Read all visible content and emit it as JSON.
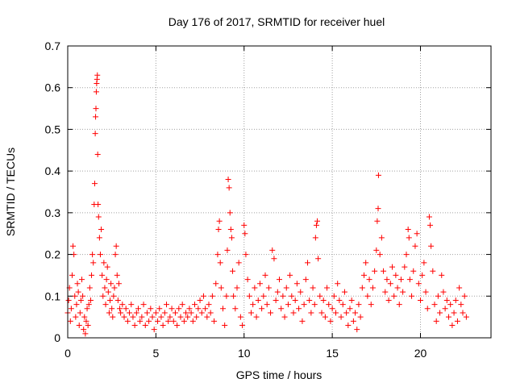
{
  "chart_data": {
    "type": "scatter",
    "title": "Day 176 of 2017, SRMTID for receiver huel",
    "xlabel": "GPS time / hours",
    "ylabel": "SRMTID / TECUs",
    "xlim": [
      0,
      24
    ],
    "ylim": [
      0,
      0.7
    ],
    "x_ticks": [
      0,
      5,
      10,
      15,
      20
    ],
    "x_tick_labels": [
      "0",
      "5",
      "10",
      "15",
      "20"
    ],
    "y_ticks": [
      0,
      0.1,
      0.2,
      0.3,
      0.4,
      0.5,
      0.6,
      0.7
    ],
    "y_tick_labels": [
      "0",
      "0.1",
      "0.2",
      "0.3",
      "0.4",
      "0.5",
      "0.6",
      "0.7"
    ],
    "grid": true,
    "marker": "+",
    "color": "#ff0000",
    "series": [
      {
        "name": "SRMTID",
        "points": [
          [
            0.0,
            0.06
          ],
          [
            0.05,
            0.09
          ],
          [
            0.1,
            0.12
          ],
          [
            0.15,
            0.04
          ],
          [
            0.2,
            0.07
          ],
          [
            0.25,
            0.15
          ],
          [
            0.3,
            0.22
          ],
          [
            0.35,
            0.2
          ],
          [
            0.4,
            0.1
          ],
          [
            0.45,
            0.05
          ],
          [
            0.5,
            0.08
          ],
          [
            0.55,
            0.13
          ],
          [
            0.6,
            0.11
          ],
          [
            0.65,
            0.03
          ],
          [
            0.7,
            0.06
          ],
          [
            0.75,
            0.09
          ],
          [
            0.8,
            0.14
          ],
          [
            0.85,
            0.1
          ],
          [
            0.9,
            0.02
          ],
          [
            0.95,
            0.05
          ],
          [
            1.0,
            0.01
          ],
          [
            1.05,
            0.04
          ],
          [
            1.1,
            0.07
          ],
          [
            1.15,
            0.03
          ],
          [
            1.2,
            0.08
          ],
          [
            1.25,
            0.12
          ],
          [
            1.3,
            0.09
          ],
          [
            1.35,
            0.15
          ],
          [
            1.4,
            0.2
          ],
          [
            1.45,
            0.18
          ],
          [
            1.5,
            0.32
          ],
          [
            1.53,
            0.37
          ],
          [
            1.56,
            0.49
          ],
          [
            1.58,
            0.53
          ],
          [
            1.6,
            0.55
          ],
          [
            1.62,
            0.59
          ],
          [
            1.64,
            0.61
          ],
          [
            1.66,
            0.62
          ],
          [
            1.68,
            0.63
          ],
          [
            1.7,
            0.44
          ],
          [
            1.72,
            0.32
          ],
          [
            1.75,
            0.29
          ],
          [
            1.8,
            0.24
          ],
          [
            1.85,
            0.2
          ],
          [
            1.9,
            0.26
          ],
          [
            1.95,
            0.15
          ],
          [
            2.0,
            0.1
          ],
          [
            2.05,
            0.18
          ],
          [
            2.1,
            0.12
          ],
          [
            2.15,
            0.08
          ],
          [
            2.2,
            0.14
          ],
          [
            2.25,
            0.17
          ],
          [
            2.3,
            0.11
          ],
          [
            2.35,
            0.06
          ],
          [
            2.4,
            0.09
          ],
          [
            2.45,
            0.13
          ],
          [
            2.5,
            0.07
          ],
          [
            2.55,
            0.05
          ],
          [
            2.6,
            0.1
          ],
          [
            2.65,
            0.12
          ],
          [
            2.7,
            0.2
          ],
          [
            2.75,
            0.22
          ],
          [
            2.8,
            0.15
          ],
          [
            2.85,
            0.09
          ],
          [
            2.9,
            0.13
          ],
          [
            2.95,
            0.07
          ],
          [
            3.0,
            0.06
          ],
          [
            3.1,
            0.08
          ],
          [
            3.2,
            0.05
          ],
          [
            3.3,
            0.07
          ],
          [
            3.4,
            0.04
          ],
          [
            3.5,
            0.06
          ],
          [
            3.6,
            0.08
          ],
          [
            3.7,
            0.05
          ],
          [
            3.8,
            0.03
          ],
          [
            3.9,
            0.06
          ],
          [
            4.0,
            0.07
          ],
          [
            4.1,
            0.04
          ],
          [
            4.2,
            0.05
          ],
          [
            4.3,
            0.08
          ],
          [
            4.4,
            0.03
          ],
          [
            4.5,
            0.06
          ],
          [
            4.6,
            0.04
          ],
          [
            4.7,
            0.07
          ],
          [
            4.8,
            0.05
          ],
          [
            4.9,
            0.02
          ],
          [
            5.0,
            0.06
          ],
          [
            5.1,
            0.04
          ],
          [
            5.2,
            0.07
          ],
          [
            5.3,
            0.05
          ],
          [
            5.4,
            0.03
          ],
          [
            5.5,
            0.06
          ],
          [
            5.6,
            0.08
          ],
          [
            5.7,
            0.04
          ],
          [
            5.8,
            0.05
          ],
          [
            5.9,
            0.07
          ],
          [
            6.0,
            0.04
          ],
          [
            6.1,
            0.06
          ],
          [
            6.2,
            0.03
          ],
          [
            6.3,
            0.07
          ],
          [
            6.4,
            0.05
          ],
          [
            6.5,
            0.08
          ],
          [
            6.6,
            0.04
          ],
          [
            6.7,
            0.06
          ],
          [
            6.8,
            0.05
          ],
          [
            6.9,
            0.07
          ],
          [
            7.0,
            0.06
          ],
          [
            7.1,
            0.04
          ],
          [
            7.2,
            0.08
          ],
          [
            7.3,
            0.05
          ],
          [
            7.4,
            0.07
          ],
          [
            7.5,
            0.09
          ],
          [
            7.6,
            0.06
          ],
          [
            7.7,
            0.1
          ],
          [
            7.8,
            0.07
          ],
          [
            7.9,
            0.05
          ],
          [
            8.0,
            0.08
          ],
          [
            8.1,
            0.06
          ],
          [
            8.2,
            0.1
          ],
          [
            8.3,
            0.04
          ],
          [
            8.4,
            0.13
          ],
          [
            8.5,
            0.2
          ],
          [
            8.55,
            0.26
          ],
          [
            8.6,
            0.28
          ],
          [
            8.65,
            0.18
          ],
          [
            8.7,
            0.12
          ],
          [
            8.8,
            0.07
          ],
          [
            8.9,
            0.03
          ],
          [
            9.0,
            0.1
          ],
          [
            9.05,
            0.21
          ],
          [
            9.1,
            0.38
          ],
          [
            9.15,
            0.36
          ],
          [
            9.2,
            0.3
          ],
          [
            9.25,
            0.26
          ],
          [
            9.3,
            0.24
          ],
          [
            9.35,
            0.16
          ],
          [
            9.4,
            0.1
          ],
          [
            9.5,
            0.07
          ],
          [
            9.6,
            0.12
          ],
          [
            9.7,
            0.18
          ],
          [
            9.8,
            0.05
          ],
          [
            9.9,
            0.03
          ],
          [
            10.0,
            0.27
          ],
          [
            10.05,
            0.25
          ],
          [
            10.1,
            0.2
          ],
          [
            10.2,
            0.14
          ],
          [
            10.3,
            0.1
          ],
          [
            10.4,
            0.06
          ],
          [
            10.5,
            0.08
          ],
          [
            10.6,
            0.12
          ],
          [
            10.7,
            0.05
          ],
          [
            10.8,
            0.09
          ],
          [
            10.9,
            0.13
          ],
          [
            11.0,
            0.07
          ],
          [
            11.1,
            0.1
          ],
          [
            11.2,
            0.15
          ],
          [
            11.3,
            0.08
          ],
          [
            11.4,
            0.12
          ],
          [
            11.5,
            0.06
          ],
          [
            11.6,
            0.21
          ],
          [
            11.7,
            0.19
          ],
          [
            11.8,
            0.09
          ],
          [
            11.9,
            0.11
          ],
          [
            12.0,
            0.14
          ],
          [
            12.1,
            0.07
          ],
          [
            12.2,
            0.1
          ],
          [
            12.3,
            0.05
          ],
          [
            12.4,
            0.12
          ],
          [
            12.5,
            0.08
          ],
          [
            12.6,
            0.15
          ],
          [
            12.7,
            0.1
          ],
          [
            12.8,
            0.06
          ],
          [
            12.9,
            0.09
          ],
          [
            13.0,
            0.13
          ],
          [
            13.1,
            0.07
          ],
          [
            13.2,
            0.11
          ],
          [
            13.3,
            0.04
          ],
          [
            13.4,
            0.08
          ],
          [
            13.5,
            0.14
          ],
          [
            13.6,
            0.18
          ],
          [
            13.7,
            0.09
          ],
          [
            13.8,
            0.06
          ],
          [
            13.9,
            0.12
          ],
          [
            14.0,
            0.08
          ],
          [
            14.05,
            0.24
          ],
          [
            14.1,
            0.27
          ],
          [
            14.15,
            0.28
          ],
          [
            14.2,
            0.19
          ],
          [
            14.3,
            0.1
          ],
          [
            14.4,
            0.06
          ],
          [
            14.5,
            0.09
          ],
          [
            14.6,
            0.05
          ],
          [
            14.7,
            0.12
          ],
          [
            14.8,
            0.08
          ],
          [
            14.9,
            0.04
          ],
          [
            15.0,
            0.07
          ],
          [
            15.1,
            0.1
          ],
          [
            15.2,
            0.06
          ],
          [
            15.3,
            0.13
          ],
          [
            15.4,
            0.09
          ],
          [
            15.5,
            0.05
          ],
          [
            15.6,
            0.08
          ],
          [
            15.7,
            0.11
          ],
          [
            15.8,
            0.06
          ],
          [
            15.9,
            0.03
          ],
          [
            16.0,
            0.07
          ],
          [
            16.1,
            0.09
          ],
          [
            16.2,
            0.04
          ],
          [
            16.3,
            0.06
          ],
          [
            16.4,
            0.02
          ],
          [
            16.5,
            0.08
          ],
          [
            16.6,
            0.05
          ],
          [
            16.7,
            0.12
          ],
          [
            16.8,
            0.15
          ],
          [
            16.9,
            0.18
          ],
          [
            17.0,
            0.1
          ],
          [
            17.1,
            0.14
          ],
          [
            17.2,
            0.08
          ],
          [
            17.3,
            0.12
          ],
          [
            17.4,
            0.16
          ],
          [
            17.5,
            0.21
          ],
          [
            17.55,
            0.28
          ],
          [
            17.6,
            0.31
          ],
          [
            17.62,
            0.39
          ],
          [
            17.7,
            0.2
          ],
          [
            17.8,
            0.24
          ],
          [
            17.9,
            0.16
          ],
          [
            18.0,
            0.11
          ],
          [
            18.1,
            0.14
          ],
          [
            18.2,
            0.09
          ],
          [
            18.3,
            0.13
          ],
          [
            18.4,
            0.17
          ],
          [
            18.5,
            0.1
          ],
          [
            18.6,
            0.15
          ],
          [
            18.7,
            0.12
          ],
          [
            18.8,
            0.08
          ],
          [
            18.9,
            0.14
          ],
          [
            19.0,
            0.11
          ],
          [
            19.1,
            0.17
          ],
          [
            19.2,
            0.2
          ],
          [
            19.3,
            0.26
          ],
          [
            19.35,
            0.24
          ],
          [
            19.4,
            0.14
          ],
          [
            19.5,
            0.1
          ],
          [
            19.6,
            0.16
          ],
          [
            19.7,
            0.22
          ],
          [
            19.8,
            0.25
          ],
          [
            19.9,
            0.13
          ],
          [
            20.0,
            0.09
          ],
          [
            20.1,
            0.15
          ],
          [
            20.2,
            0.18
          ],
          [
            20.3,
            0.11
          ],
          [
            20.4,
            0.07
          ],
          [
            20.5,
            0.29
          ],
          [
            20.55,
            0.27
          ],
          [
            20.6,
            0.22
          ],
          [
            20.7,
            0.16
          ],
          [
            20.8,
            0.08
          ],
          [
            20.9,
            0.04
          ],
          [
            21.0,
            0.1
          ],
          [
            21.1,
            0.06
          ],
          [
            21.2,
            0.15
          ],
          [
            21.3,
            0.11
          ],
          [
            21.4,
            0.07
          ],
          [
            21.5,
            0.09
          ],
          [
            21.6,
            0.05
          ],
          [
            21.7,
            0.08
          ],
          [
            21.8,
            0.03
          ],
          [
            21.9,
            0.06
          ],
          [
            22.0,
            0.09
          ],
          [
            22.1,
            0.04
          ],
          [
            22.2,
            0.12
          ],
          [
            22.3,
            0.08
          ],
          [
            22.4,
            0.06
          ],
          [
            22.5,
            0.1
          ],
          [
            22.6,
            0.05
          ]
        ]
      }
    ]
  }
}
